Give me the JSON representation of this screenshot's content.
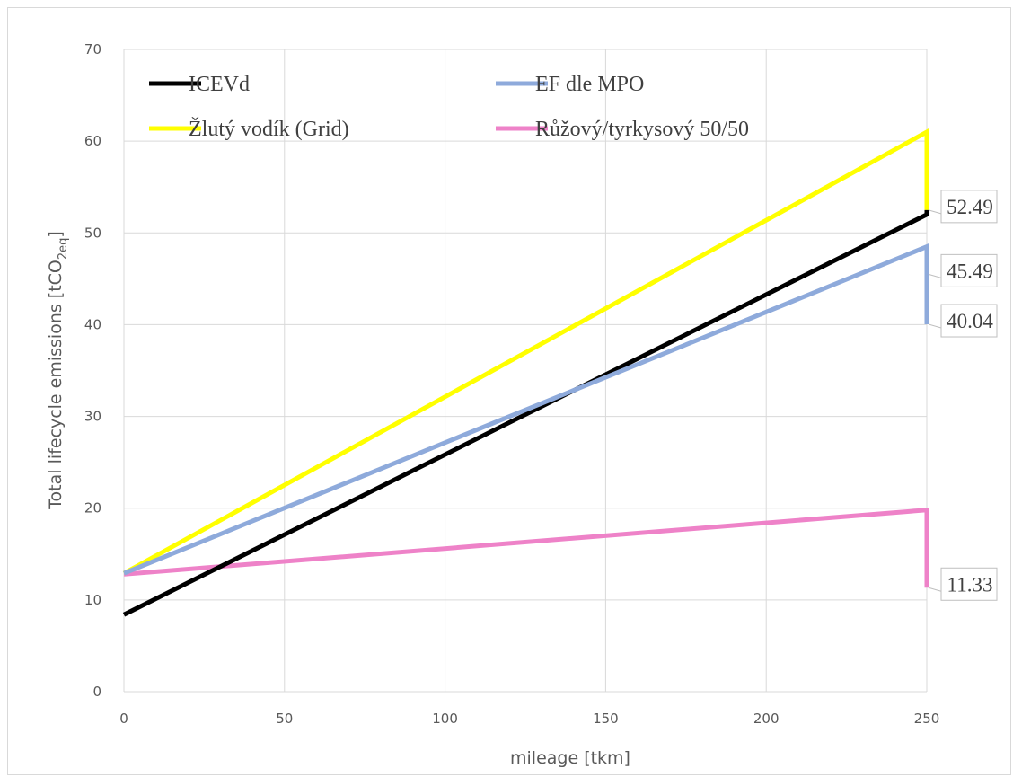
{
  "chart_data": {
    "type": "line",
    "xlabel": "mileage [tkm]",
    "ylabel": "Total lifecycle emissions [tCO",
    "ylabel_sub": "2eq",
    "ylabel_end": "]",
    "xlim": [
      0,
      250
    ],
    "ylim": [
      0,
      70
    ],
    "x_ticks": [
      0,
      50,
      100,
      150,
      200,
      250
    ],
    "y_ticks": [
      0,
      10,
      20,
      30,
      40,
      50,
      60,
      70
    ],
    "grid": true,
    "legend": "top-left, two columns",
    "series": [
      {
        "name": "ICEVd",
        "color": "#000000",
        "points": [
          [
            0,
            8.4
          ],
          [
            250,
            52.0
          ],
          [
            250,
            52.49
          ]
        ],
        "end_label": "52.49"
      },
      {
        "name": "EF dle MPO",
        "color": "#8eaadb",
        "points": [
          [
            0,
            12.9
          ],
          [
            250,
            48.5
          ],
          [
            250,
            40.04
          ]
        ],
        "end_label": "40.04"
      },
      {
        "name": "Žlutý vodík (Grid)",
        "color": "#ffff00",
        "points": [
          [
            0,
            12.9
          ],
          [
            250,
            61.0
          ],
          [
            250,
            52.49
          ]
        ],
        "end_label": null
      },
      {
        "name": "Růžový/tyrkysový 50/50",
        "color": "#ee82c8",
        "points": [
          [
            0,
            12.8
          ],
          [
            250,
            19.8
          ],
          [
            250,
            11.33
          ]
        ],
        "end_label": "11.33"
      }
    ],
    "callouts": [
      {
        "text": "52.49",
        "x": 250,
        "y": 52.49
      },
      {
        "text": "45.49",
        "x": 250,
        "y": 45.49
      },
      {
        "text": "40.04",
        "x": 250,
        "y": 40.04
      },
      {
        "text": "11.33",
        "x": 250,
        "y": 11.33
      }
    ]
  }
}
